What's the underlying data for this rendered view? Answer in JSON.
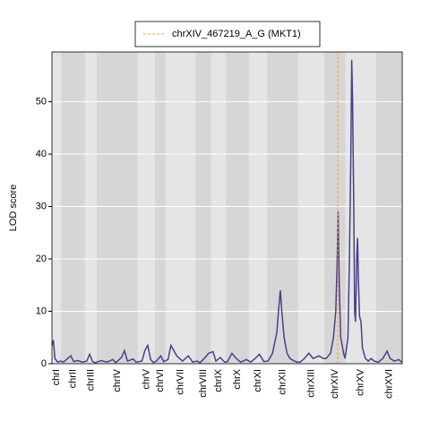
{
  "chart_data": {
    "type": "line",
    "ylabel": "LOD score",
    "ylim": [
      0,
      59.5
    ],
    "yticks": [
      0,
      10,
      20,
      30,
      40,
      50
    ],
    "xlim": [
      0,
      12.07
    ],
    "grid": true,
    "band_colors": [
      "#e5e5e5",
      "#d6d6d6"
    ],
    "chromosomes": [
      {
        "name": "chrI",
        "start": 0,
        "end": 0.31
      },
      {
        "name": "chrII",
        "start": 0.31,
        "end": 1.14
      },
      {
        "name": "chrIII",
        "start": 1.14,
        "end": 1.54
      },
      {
        "name": "chrIV",
        "start": 1.54,
        "end": 2.96
      },
      {
        "name": "chrV",
        "start": 2.96,
        "end": 3.55
      },
      {
        "name": "chrVI",
        "start": 3.55,
        "end": 3.92
      },
      {
        "name": "chrVII",
        "start": 3.92,
        "end": 4.94
      },
      {
        "name": "chrVIII",
        "start": 4.94,
        "end": 5.49
      },
      {
        "name": "chrIX",
        "start": 5.49,
        "end": 5.99
      },
      {
        "name": "chrX",
        "start": 5.99,
        "end": 6.79
      },
      {
        "name": "chrXI",
        "start": 6.79,
        "end": 7.41
      },
      {
        "name": "chrXII",
        "start": 7.41,
        "end": 8.49
      },
      {
        "name": "chrXIII",
        "start": 8.49,
        "end": 9.38
      },
      {
        "name": "chrXIV",
        "start": 9.38,
        "end": 10.12
      },
      {
        "name": "chrXV",
        "start": 10.12,
        "end": 11.17
      },
      {
        "name": "chrXVI",
        "start": 11.17,
        "end": 12.07
      }
    ],
    "marker": {
      "x": 9.85,
      "label": "chrXIV_467219_A_G (MKT1)",
      "color": "#f5a623"
    },
    "series": [
      {
        "color": "#4a3f8c",
        "x": [
          0,
          0.05,
          0.1,
          0.2,
          0.3,
          0.4,
          0.5,
          0.65,
          0.75,
          0.9,
          1.05,
          1.2,
          1.3,
          1.4,
          1.5,
          1.7,
          1.9,
          2.1,
          2.2,
          2.4,
          2.5,
          2.6,
          2.8,
          2.9,
          3.1,
          3.2,
          3.3,
          3.4,
          3.5,
          3.6,
          3.75,
          3.85,
          4.0,
          4.1,
          4.2,
          4.3,
          4.5,
          4.7,
          4.85,
          5.0,
          5.1,
          5.25,
          5.4,
          5.55,
          5.65,
          5.8,
          5.95,
          6.05,
          6.2,
          6.35,
          6.5,
          6.7,
          6.85,
          7.0,
          7.15,
          7.3,
          7.45,
          7.6,
          7.75,
          7.82,
          7.87,
          7.92,
          8.0,
          8.1,
          8.2,
          8.35,
          8.45,
          8.55,
          8.7,
          8.85,
          9.0,
          9.2,
          9.35,
          9.45,
          9.6,
          9.7,
          9.78,
          9.83,
          9.86,
          9.9,
          9.95,
          10.05,
          10.1,
          10.15,
          10.2,
          10.25,
          10.3,
          10.33,
          10.36,
          10.4,
          10.43,
          10.46,
          10.5,
          10.53,
          10.56,
          10.6,
          10.65,
          10.7,
          10.8,
          10.9,
          11.0,
          11.1,
          11.25,
          11.4,
          11.55,
          11.65,
          11.8,
          11.95,
          12.05
        ],
        "values": [
          3.5,
          4.5,
          1,
          0.3,
          0.5,
          0.3,
          0.8,
          1.5,
          0.4,
          0.6,
          0.3,
          0.5,
          1.8,
          0.4,
          0.2,
          0.6,
          0.3,
          0.8,
          0.2,
          1.2,
          2.5,
          0.5,
          0.9,
          0.3,
          0.5,
          2.5,
          3.5,
          0.8,
          0.2,
          0.5,
          1.5,
          0.4,
          0.8,
          3.5,
          2.5,
          1.5,
          0.5,
          1.5,
          0.3,
          0.5,
          0.2,
          1,
          2,
          2.3,
          0.5,
          1.2,
          0.3,
          0.4,
          2,
          1,
          0.3,
          0.8,
          0.3,
          1,
          1.8,
          0.4,
          0.5,
          2,
          6,
          11,
          14,
          10,
          5,
          2,
          1,
          0.5,
          0.3,
          0.3,
          1,
          2,
          1,
          1.5,
          1,
          1,
          2,
          5,
          10,
          20,
          29,
          15,
          5,
          2,
          1,
          3,
          5,
          20,
          40,
          58,
          50,
          30,
          10,
          8,
          20,
          24,
          16,
          9,
          8,
          3,
          1,
          0.5,
          1,
          0.5,
          0.3,
          1,
          2.4,
          1,
          0.5,
          0.8,
          0.3
        ]
      }
    ]
  }
}
